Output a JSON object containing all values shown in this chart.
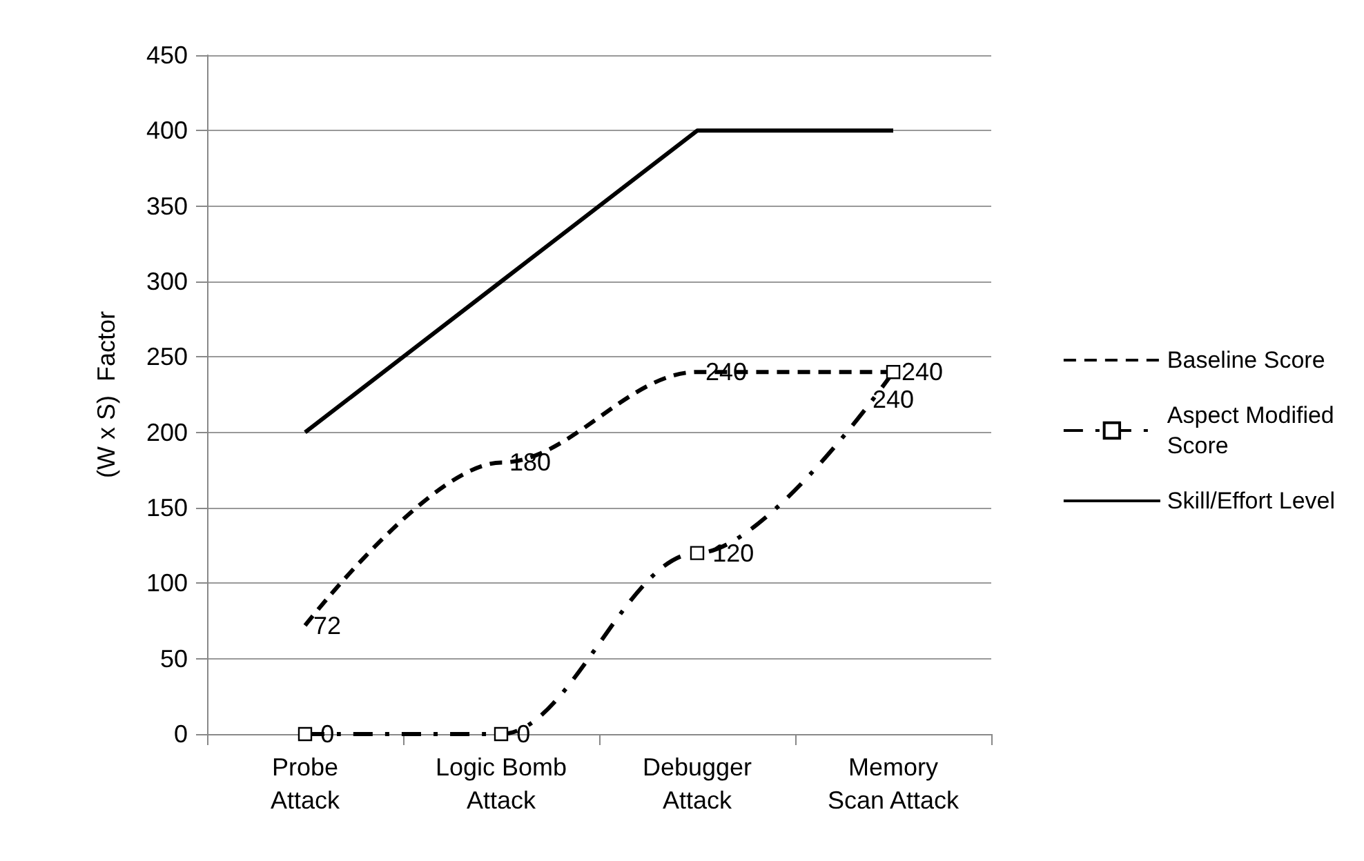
{
  "chart_data": {
    "type": "line",
    "ylabel": "(W x S)  Factor",
    "categories": [
      "Probe\nAttack",
      "Logic Bomb\nAttack",
      "Debugger\nAttack",
      "Memory\nScan Attack"
    ],
    "series": [
      {
        "name": "Baseline Score",
        "color": "#000000",
        "values": [
          72,
          180,
          240,
          240
        ],
        "line_style": "dashed",
        "marker": "none",
        "value_labels": [
          "72",
          "180",
          "240",
          "240"
        ]
      },
      {
        "name": "Aspect Modified\nScore",
        "color": "#000000",
        "values": [
          0,
          0,
          120,
          240
        ],
        "line_style": "dotted",
        "marker": "square",
        "value_labels": [
          "0",
          "0",
          "120",
          "240"
        ]
      },
      {
        "name": "Skill/Effort Level",
        "color": "#000000",
        "values": [
          200,
          300,
          400,
          400
        ],
        "line_style": "solid",
        "marker": "none"
      }
    ],
    "ylim": [
      0,
      450
    ],
    "yticks": [
      0,
      50,
      100,
      150,
      200,
      250,
      300,
      350,
      400,
      450
    ],
    "grid": "y",
    "legend": "right"
  }
}
